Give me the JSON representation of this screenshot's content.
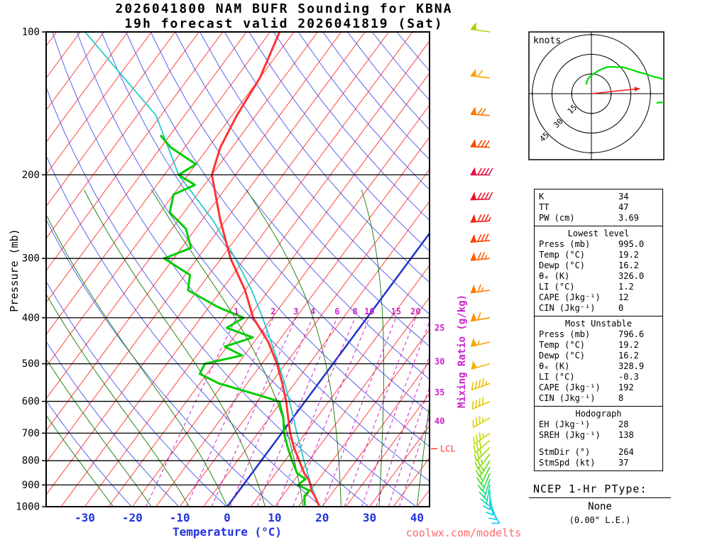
{
  "header": {
    "title_line1": "2026041800 NAM BUFR Sounding for KBNA",
    "title_line2": "19h forecast valid 2026041819 (Sat)"
  },
  "watermark": "coolwx.com/modelts",
  "skewt": {
    "pressure_axis_label": "Pressure (mb)",
    "temperature_axis_label": "Temperature (°C)",
    "mixing_ratio_axis_label": "Mixing Ratio (g/kg)",
    "lcl_label": "LCL",
    "lcl_pressure": 755,
    "pressure_ticks": [
      100,
      200,
      300,
      400,
      500,
      600,
      700,
      800,
      900,
      1000
    ],
    "temperature_ticks": [
      -30,
      -20,
      -10,
      0,
      10,
      20,
      30,
      40
    ],
    "mixing_ratio_values": [
      1,
      2,
      3,
      4,
      6,
      8,
      10,
      15,
      20,
      25,
      30,
      35,
      40
    ],
    "colors": {
      "isotherm": "#ff4444",
      "zero_isotherm": "#2233cc",
      "dry_adiabat": "#4455ee",
      "moist_adiabat": "#117700",
      "mixing_ratio": "#cc22cc",
      "temperature": "#ff3333",
      "dewpoint": "#00cc00",
      "parcel": "#22cccc",
      "axis_text": "#2233dd",
      "lcl": "#ff3333"
    }
  },
  "chart_data": {
    "type": "line",
    "title": "Skew-T / Log-P sounding",
    "xlabel": "Temperature (°C)",
    "ylabel": "Pressure (mb)",
    "x_range": [
      -40,
      45
    ],
    "y_range": [
      1000,
      100
    ],
    "y_scale": "log",
    "x_ticks": [
      -30,
      -20,
      -10,
      0,
      10,
      20,
      30,
      40
    ],
    "y_ticks": [
      100,
      200,
      300,
      400,
      500,
      600,
      700,
      800,
      900,
      1000
    ],
    "series": [
      {
        "name": "temperature",
        "color": "#ff3333",
        "points_p_T": [
          [
            995,
            19.2
          ],
          [
            950,
            16.8
          ],
          [
            925,
            15.2
          ],
          [
            900,
            14.2
          ],
          [
            875,
            12.8
          ],
          [
            850,
            11.0
          ],
          [
            800,
            8.0
          ],
          [
            750,
            4.8
          ],
          [
            700,
            1.8
          ],
          [
            650,
            -1.0
          ],
          [
            600,
            -4.0
          ],
          [
            550,
            -7.6
          ],
          [
            500,
            -11.8
          ],
          [
            450,
            -17.0
          ],
          [
            400,
            -24.0
          ],
          [
            350,
            -30.0
          ],
          [
            300,
            -38.0
          ],
          [
            250,
            -46.0
          ],
          [
            200,
            -55.0
          ],
          [
            175,
            -57.5
          ],
          [
            150,
            -59.0
          ],
          [
            125,
            -60.0
          ],
          [
            100,
            -63.0
          ]
        ]
      },
      {
        "name": "dewpoint",
        "color": "#00cc00",
        "points_p_T": [
          [
            995,
            16.2
          ],
          [
            950,
            14.6
          ],
          [
            925,
            14.8
          ],
          [
            900,
            11.5
          ],
          [
            875,
            12.2
          ],
          [
            850,
            9.5
          ],
          [
            800,
            6.5
          ],
          [
            750,
            3.5
          ],
          [
            700,
            0.5
          ],
          [
            650,
            -2.0
          ],
          [
            600,
            -5.5
          ],
          [
            575,
            -13.0
          ],
          [
            550,
            -21.0
          ],
          [
            525,
            -26.5
          ],
          [
            500,
            -27.0
          ],
          [
            480,
            -20.5
          ],
          [
            460,
            -25.5
          ],
          [
            440,
            -21.0
          ],
          [
            420,
            -28.0
          ],
          [
            400,
            -26.0
          ],
          [
            380,
            -33.0
          ],
          [
            350,
            -42.0
          ],
          [
            325,
            -44.0
          ],
          [
            300,
            -52.0
          ],
          [
            285,
            -48.0
          ],
          [
            260,
            -52.0
          ],
          [
            240,
            -58.0
          ],
          [
            220,
            -60.0
          ],
          [
            210,
            -57.0
          ],
          [
            200,
            -62.0
          ],
          [
            190,
            -60.0
          ],
          [
            175,
            -68.0
          ],
          [
            165,
            -72.0
          ]
        ]
      },
      {
        "name": "parcel",
        "color": "#22cccc",
        "points_p_T": [
          [
            995,
            19.2
          ],
          [
            950,
            16.9
          ],
          [
            900,
            14.3
          ],
          [
            850,
            11.7
          ],
          [
            800,
            9.0
          ],
          [
            750,
            6.2
          ],
          [
            700,
            3.2
          ],
          [
            650,
            0.1
          ],
          [
            600,
            -3.3
          ],
          [
            550,
            -7.1
          ],
          [
            500,
            -11.5
          ],
          [
            450,
            -16.4
          ],
          [
            400,
            -22.0
          ],
          [
            350,
            -28.6
          ],
          [
            300,
            -37.0
          ],
          [
            250,
            -47.5
          ],
          [
            200,
            -62.0
          ],
          [
            150,
            -76.0
          ],
          [
            100,
            -104.0
          ]
        ]
      }
    ],
    "wind_barbs": [
      {
        "p": 1000,
        "dir": 150,
        "spd": 8,
        "color": "#00c8ff"
      },
      {
        "p": 975,
        "dir": 160,
        "spd": 10,
        "color": "#00ccf2"
      },
      {
        "p": 950,
        "dir": 170,
        "spd": 12,
        "color": "#00d2e0"
      },
      {
        "p": 925,
        "dir": 180,
        "spd": 14,
        "color": "#00d8c4"
      },
      {
        "p": 900,
        "dir": 190,
        "spd": 16,
        "color": "#00dca0"
      },
      {
        "p": 875,
        "dir": 196,
        "spd": 18,
        "color": "#0edd74"
      },
      {
        "p": 850,
        "dir": 202,
        "spd": 20,
        "color": "#2add48"
      },
      {
        "p": 825,
        "dir": 207,
        "spd": 22,
        "color": "#48dd24"
      },
      {
        "p": 800,
        "dir": 212,
        "spd": 24,
        "color": "#66dd08"
      },
      {
        "p": 775,
        "dir": 218,
        "spd": 26,
        "color": "#84dd00"
      },
      {
        "p": 750,
        "dir": 224,
        "spd": 28,
        "color": "#9cdc00"
      },
      {
        "p": 725,
        "dir": 229,
        "spd": 31,
        "color": "#b2dc00"
      },
      {
        "p": 700,
        "dir": 234,
        "spd": 33,
        "color": "#c4da00"
      },
      {
        "p": 650,
        "dir": 240,
        "spd": 36,
        "color": "#d6d400"
      },
      {
        "p": 600,
        "dir": 246,
        "spd": 40,
        "color": "#e4cc00"
      },
      {
        "p": 550,
        "dir": 250,
        "spd": 44,
        "color": "#efc000"
      },
      {
        "p": 500,
        "dir": 254,
        "spd": 48,
        "color": "#f7b200"
      },
      {
        "p": 450,
        "dir": 257,
        "spd": 53,
        "color": "#fca200"
      },
      {
        "p": 400,
        "dir": 260,
        "spd": 58,
        "color": "#ff9000"
      },
      {
        "p": 350,
        "dir": 262,
        "spd": 66,
        "color": "#ff7a00"
      },
      {
        "p": 300,
        "dir": 264,
        "spd": 74,
        "color": "#ff5e00"
      },
      {
        "p": 275,
        "dir": 265,
        "spd": 78,
        "color": "#fc4100"
      },
      {
        "p": 250,
        "dir": 266,
        "spd": 84,
        "color": "#f22a10"
      },
      {
        "p": 225,
        "dir": 268,
        "spd": 90,
        "color": "#e91530"
      },
      {
        "p": 200,
        "dir": 270,
        "spd": 92,
        "color": "#e51243"
      },
      {
        "p": 175,
        "dir": 272,
        "spd": 82,
        "color": "#f84a00"
      },
      {
        "p": 150,
        "dir": 274,
        "spd": 72,
        "color": "#ff7600"
      },
      {
        "p": 125,
        "dir": 276,
        "spd": 60,
        "color": "#ffa000"
      },
      {
        "p": 100,
        "dir": 278,
        "spd": 50,
        "color": "#b6cc00"
      }
    ]
  },
  "hodograph": {
    "unit_label": "knots",
    "ring_interval_kt": 15,
    "rings": [
      15,
      30,
      45
    ],
    "ring_labels": [
      "15",
      "30",
      "45"
    ],
    "storm_dir": 264,
    "storm_spd": 37,
    "trace_color": "#00dd00",
    "storm_color": "#ee2222"
  },
  "stats": {
    "sections": [
      {
        "header": null,
        "rows": [
          {
            "label": "K",
            "value": "34"
          },
          {
            "label": "TT",
            "value": "47"
          },
          {
            "label": "PW (cm)",
            "value": "3.69"
          }
        ]
      },
      {
        "header": "Lowest level",
        "rows": [
          {
            "label": "Press (mb)",
            "value": "995.0"
          },
          {
            "label": "Temp (°C)",
            "value": "19.2"
          },
          {
            "label": "Dewp (°C)",
            "value": "16.2"
          },
          {
            "label": "θₑ (K)",
            "value": "326.0"
          },
          {
            "label": "LI (°C)",
            "value": "1.2"
          },
          {
            "label": "CAPE (Jkg⁻¹)",
            "value": "12"
          },
          {
            "label": "CIN (Jkg⁻¹)",
            "value": "0"
          }
        ]
      },
      {
        "header": "Most Unstable",
        "rows": [
          {
            "label": "Press (mb)",
            "value": "796.6"
          },
          {
            "label": "Temp (°C)",
            "value": "19.2"
          },
          {
            "label": "Dewp (°C)",
            "value": "16.2"
          },
          {
            "label": "θₑ (K)",
            "value": "328.9"
          },
          {
            "label": "LI (°C)",
            "value": "-0.3"
          },
          {
            "label": "CAPE (Jkg⁻¹)",
            "value": "192"
          },
          {
            "label": "CIN (Jkg⁻¹)",
            "value": "8"
          }
        ]
      },
      {
        "header": "Hodograph",
        "rows": [
          {
            "label": "EH (Jkg⁻¹)",
            "value": "28"
          },
          {
            "label": "SREH (Jkg⁻¹)",
            "value": "138"
          },
          {
            "label": "StmDir (°)",
            "value": "264",
            "gap": true
          },
          {
            "label": "StmSpd (kt)",
            "value": "37"
          }
        ]
      }
    ]
  },
  "ptype": {
    "heading": "NCEP 1-Hr PType:",
    "value": "None",
    "detail": "(0.00\" L.E.)"
  }
}
